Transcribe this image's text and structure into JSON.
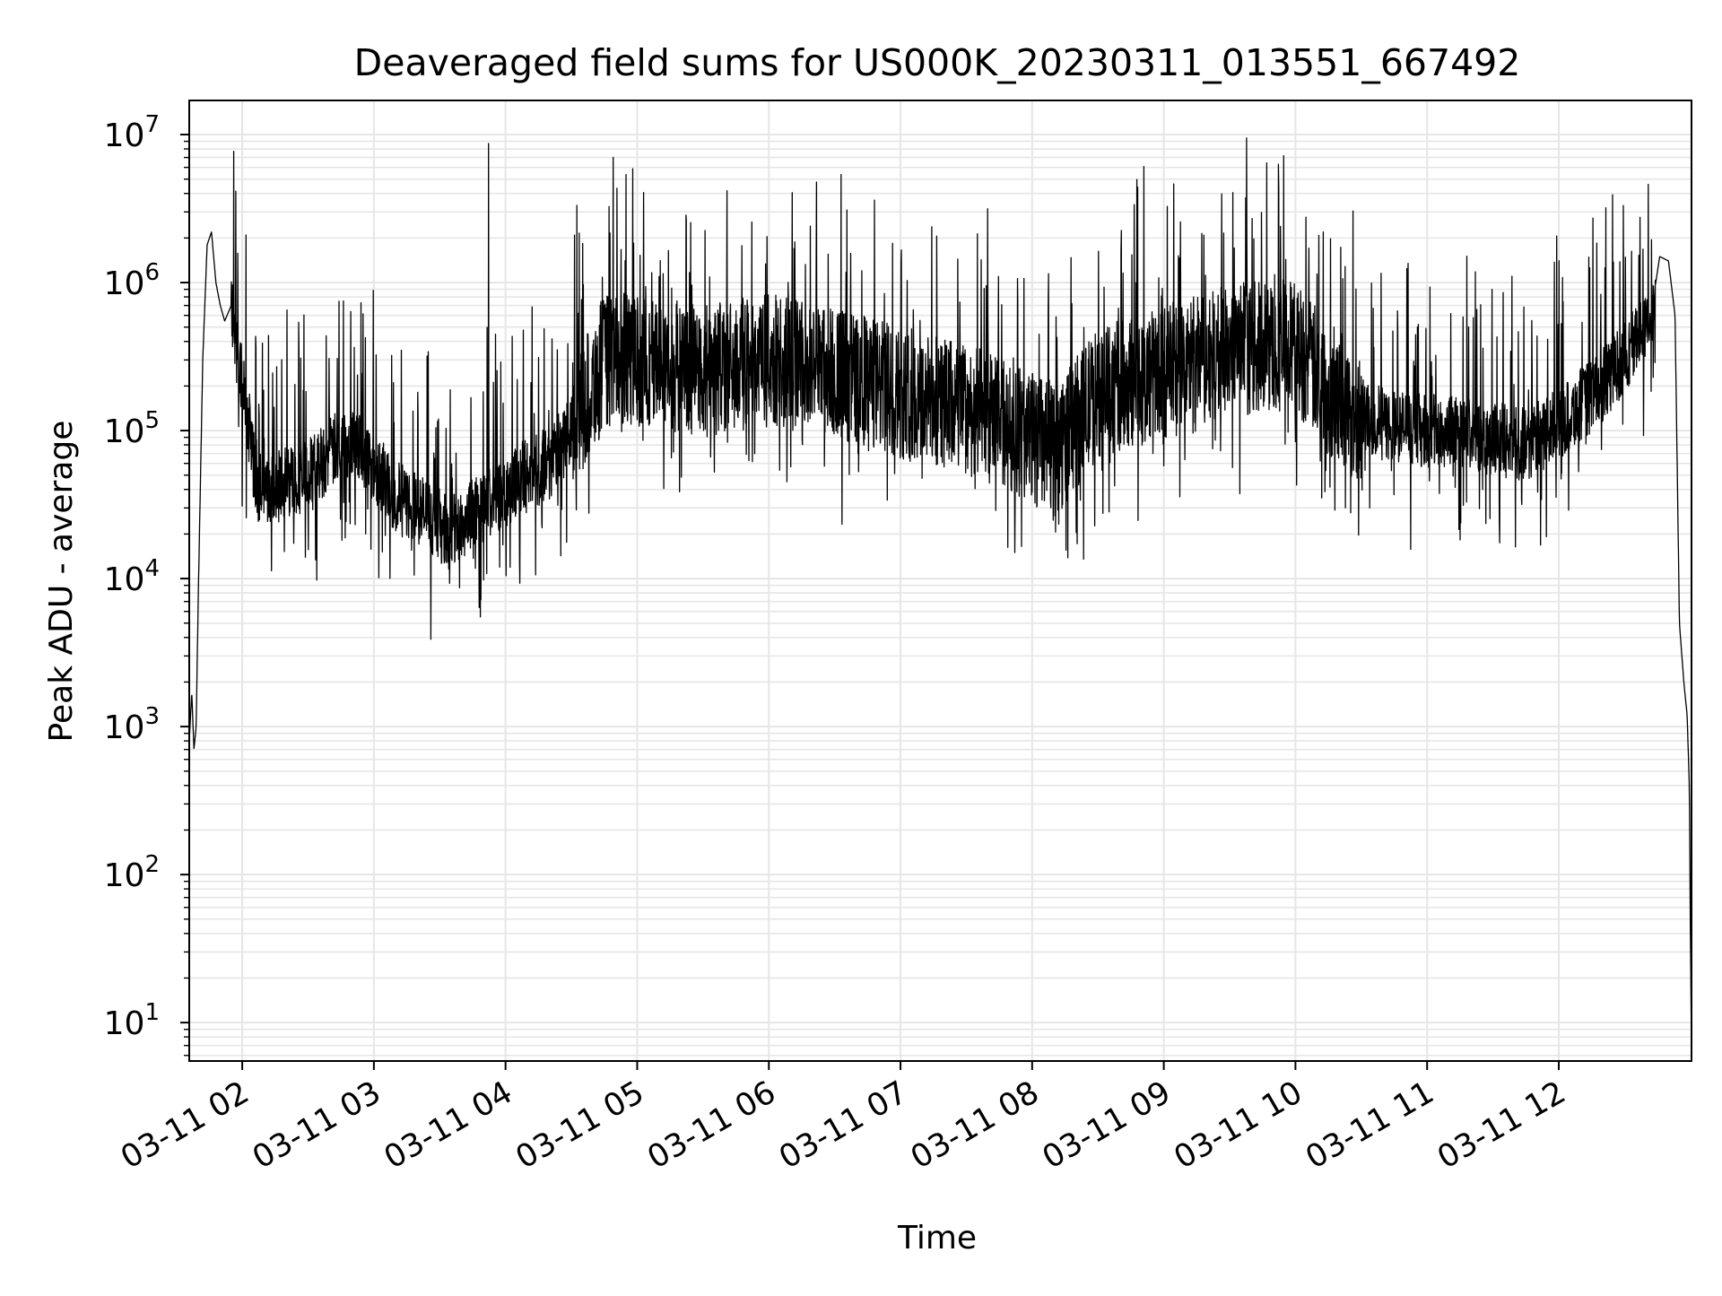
{
  "chart_data": {
    "type": "line",
    "title": "Deaveraged field sums for US000K_20230311_013551_667492",
    "xlabel": "Time",
    "ylabel": "Peak ADU - average",
    "y_scale": "log",
    "ylim": [
      5.5,
      17000000
    ],
    "xlim": [
      "2023-03-11 01:35:51",
      "2023-03-11 13:00:30"
    ],
    "x_ticks": [
      {
        "value": "2023-03-11 02:00",
        "label": "03-11 02"
      },
      {
        "value": "2023-03-11 03:00",
        "label": "03-11 03"
      },
      {
        "value": "2023-03-11 04:00",
        "label": "03-11 04"
      },
      {
        "value": "2023-03-11 05:00",
        "label": "03-11 05"
      },
      {
        "value": "2023-03-11 06:00",
        "label": "03-11 06"
      },
      {
        "value": "2023-03-11 07:00",
        "label": "03-11 07"
      },
      {
        "value": "2023-03-11 08:00",
        "label": "03-11 08"
      },
      {
        "value": "2023-03-11 09:00",
        "label": "03-11 09"
      },
      {
        "value": "2023-03-11 10:00",
        "label": "03-11 10"
      },
      {
        "value": "2023-03-11 11:00",
        "label": "03-11 11"
      },
      {
        "value": "2023-03-11 12:00",
        "label": "03-11 12"
      }
    ],
    "y_ticks": [
      {
        "value": 10,
        "base": "10",
        "exp": "1"
      },
      {
        "value": 100,
        "base": "10",
        "exp": "2"
      },
      {
        "value": 1000,
        "base": "10",
        "exp": "3"
      },
      {
        "value": 10000,
        "base": "10",
        "exp": "4"
      },
      {
        "value": 100000,
        "base": "10",
        "exp": "5"
      },
      {
        "value": 1000000,
        "base": "10",
        "exp": "6"
      },
      {
        "value": 10000000,
        "base": "10",
        "exp": "7"
      }
    ],
    "grid": true,
    "line_color": "#000000",
    "grid_color": "#e6e6e6",
    "series": [
      {
        "x": [
          "2023-03-11 01:35:51",
          "2023-03-11 01:37:00",
          "2023-03-11 01:38:00",
          "2023-03-11 01:39:00",
          "2023-03-11 01:40:00",
          "2023-03-11 01:42:00",
          "2023-03-11 01:44:00",
          "2023-03-11 01:46:00",
          "2023-03-11 01:48:00",
          "2023-03-11 01:50:00",
          "2023-03-11 01:52:00",
          "2023-03-11 01:55:00",
          "2023-03-11 01:58:00",
          "2023-03-11 02:02:00",
          "2023-03-11 02:05:00",
          "2023-03-11 02:08:00",
          "2023-03-11 02:10:00",
          "2023-03-11 02:13:00",
          "2023-03-11 02:20:00",
          "2023-03-11 02:30:00",
          "2023-03-11 02:40:00",
          "2023-03-11 02:50:00",
          "2023-03-11 02:55:00",
          "2023-03-11 03:00:00",
          "2023-03-11 03:10:00",
          "2023-03-11 03:20:00",
          "2023-03-11 03:30:00",
          "2023-03-11 03:35:00",
          "2023-03-11 03:42:00",
          "2023-03-11 03:50:00",
          "2023-03-11 03:55:00",
          "2023-03-11 04:00:00",
          "2023-03-11 04:10:00",
          "2023-03-11 04:20:00",
          "2023-03-11 04:30:00",
          "2023-03-11 04:45:00",
          "2023-03-11 05:00:00",
          "2023-03-11 05:30:00",
          "2023-03-11 06:00:00",
          "2023-03-11 06:30:00",
          "2023-03-11 07:00:00",
          "2023-03-11 07:30:00",
          "2023-03-11 08:00:00",
          "2023-03-11 08:10:00",
          "2023-03-11 08:30:00",
          "2023-03-11 09:00:00",
          "2023-03-11 09:30:00",
          "2023-03-11 10:00:00",
          "2023-03-11 10:20:00",
          "2023-03-11 10:40:00",
          "2023-03-11 11:00:00",
          "2023-03-11 11:20:00",
          "2023-03-11 11:45:00",
          "2023-03-11 12:00:00",
          "2023-03-11 12:20:00",
          "2023-03-11 12:35:00",
          "2023-03-11 12:42:00",
          "2023-03-11 12:46:00",
          "2023-03-11 12:50:00",
          "2023-03-11 12:53:00",
          "2023-03-11 12:55:00",
          "2023-03-11 12:57:00",
          "2023-03-11 12:58:30",
          "2023-03-11 12:59:30",
          "2023-03-11 13:00:00",
          "2023-03-11 13:00:30"
        ],
        "y": [
          800,
          1700,
          700,
          1000,
          8000,
          300000,
          1800000,
          2200000,
          1000000,
          700000,
          550000,
          700000,
          300000,
          150000,
          60000,
          40000,
          50000,
          38000,
          45000,
          50000,
          70000,
          90000,
          70000,
          60000,
          35000,
          30000,
          23000,
          20000,
          25000,
          30000,
          35000,
          40000,
          50000,
          60000,
          100000,
          300000,
          300000,
          250000,
          300000,
          250000,
          180000,
          140000,
          90000,
          70000,
          180000,
          250000,
          350000,
          380000,
          150000,
          110000,
          100000,
          95000,
          80000,
          110000,
          200000,
          400000,
          600000,
          1500000,
          1400000,
          600000,
          5000,
          2000,
          1200,
          400,
          40,
          6
        ],
        "noise": true
      }
    ]
  }
}
